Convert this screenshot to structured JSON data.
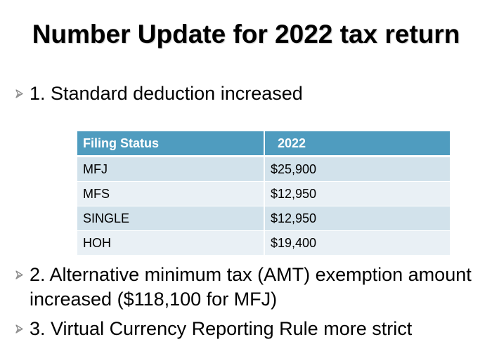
{
  "slide": {
    "title": "Number Update for 2022 tax return"
  },
  "bullets": [
    {
      "icon": "arrow-bullet-icon",
      "text": "1. Standard deduction increased"
    },
    {
      "icon": "arrow-bullet-icon",
      "text": "2. Alternative minimum tax (AMT) exemption amount increased ($118,100  for MFJ)"
    },
    {
      "icon": "arrow-bullet-icon",
      "text": "3. Virtual Currency Reporting Rule more strict"
    }
  ],
  "table": {
    "headers": [
      "Filing Status",
      "2022"
    ],
    "rows": [
      [
        "MFJ",
        "$25,900"
      ],
      [
        "MFS",
        "$12,950"
      ],
      [
        "SINGLE",
        "$12,950"
      ],
      [
        "HOH",
        "$19,400"
      ]
    ]
  },
  "colors": {
    "header_bg": "#4f9cbf",
    "row_odd": "#d2e2eb",
    "row_even": "#e9f0f5",
    "bullet_arrow": "#7f7f7f"
  }
}
